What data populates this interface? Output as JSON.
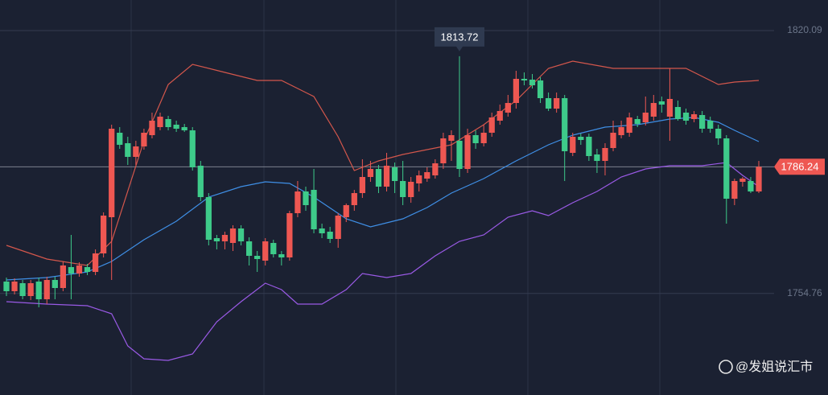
{
  "chart_data": {
    "type": "candlestick",
    "ylim": [
      1729.5,
      1827.7
    ],
    "yticks": [
      1820.09,
      1754.76
    ],
    "grid": true,
    "up_color": "#ee5752",
    "down_color": "#3ecb8a",
    "open": [
      1757.7,
      1755.3,
      1757.3,
      1754.1,
      1757.7,
      1753.3,
      1758.1,
      1756.1,
      1761.3,
      1759.7,
      1761.3,
      1760.1,
      1764.7,
      1773.7,
      1794.7,
      1792.1,
      1788.7,
      1791.3,
      1794.1,
      1796.1,
      1798.1,
      1796.7,
      1796.1,
      1795.3,
      1786.5,
      1778.7,
      1768.5,
      1767.7,
      1767.3,
      1770.9,
      1767.7,
      1764.1,
      1762.9,
      1767.3,
      1764.5,
      1763.7,
      1774.7,
      1780.1,
      1780.5,
      1770.9,
      1770.1,
      1768.3,
      1773.7,
      1776.7,
      1779.7,
      1783.7,
      1785.7,
      1781.3,
      1786.1,
      1782.7,
      1778.7,
      1782.1,
      1783.3,
      1784.1,
      1787.1,
      1792.7,
      1792.7,
      1785.7,
      1794.1,
      1792.1,
      1794.7,
      1797.7,
      1799.7,
      1802.1,
      1808.1,
      1807.9,
      1807.7,
      1803.3,
      1800.7,
      1803.3,
      1789.7,
      1793.7,
      1793.7,
      1789.3,
      1787.7,
      1790.9,
      1794.1,
      1794.7,
      1798.1,
      1797.3,
      1798.7,
      1802.5,
      1798.7,
      1801.1,
      1799.7,
      1798.1,
      1799.1,
      1797.7,
      1795.7,
      1793.3,
      1778.3,
      1782.5,
      1782.7,
      1780.1
    ],
    "high": [
      1758.7,
      1758.5,
      1758.1,
      1758.1,
      1758.7,
      1758.9,
      1758.9,
      1762.7,
      1769.3,
      1762.5,
      1762.1,
      1765.7,
      1774.9,
      1796.7,
      1796.1,
      1793.7,
      1792.7,
      1795.7,
      1799.7,
      1799.7,
      1798.9,
      1797.7,
      1796.9,
      1796.1,
      1787.7,
      1779.7,
      1769.3,
      1770.1,
      1771.7,
      1771.7,
      1768.7,
      1765.3,
      1768.5,
      1768.1,
      1765.3,
      1775.3,
      1782.7,
      1781.3,
      1785.7,
      1772.1,
      1771.3,
      1774.7,
      1777.1,
      1780.5,
      1788.1,
      1787.7,
      1786.7,
      1789.7,
      1787.3,
      1787.7,
      1783.7,
      1785.3,
      1786.1,
      1788.1,
      1794.7,
      1795.3,
      1813.72,
      1795.7,
      1795.3,
      1796.7,
      1799.7,
      1801.7,
      1804.1,
      1810.1,
      1809.7,
      1809.3,
      1808.5,
      1804.7,
      1804.7,
      1804.1,
      1794.7,
      1794.5,
      1794.5,
      1790.7,
      1792.1,
      1797.7,
      1797.7,
      1799.7,
      1798.9,
      1803.7,
      1804.1,
      1803.7,
      1810.7,
      1802.7,
      1800.7,
      1800.1,
      1800.1,
      1798.7,
      1796.7,
      1794.1,
      1783.3,
      1783.7,
      1783.7,
      1787.7
    ],
    "low": [
      1754.1,
      1754.5,
      1753.3,
      1753.1,
      1751.3,
      1752.1,
      1753.3,
      1755.3,
      1753.3,
      1758.9,
      1759.3,
      1759.3,
      1763.7,
      1758.1,
      1790.7,
      1786.7,
      1786.7,
      1790.5,
      1793.3,
      1795.3,
      1795.3,
      1794.9,
      1794.9,
      1785.3,
      1777.7,
      1766.7,
      1765.7,
      1765.7,
      1765.3,
      1766.7,
      1761.7,
      1760.1,
      1761.7,
      1763.7,
      1761.7,
      1762.9,
      1773.7,
      1775.3,
      1769.7,
      1768.5,
      1767.3,
      1766.1,
      1772.5,
      1775.3,
      1778.5,
      1782.5,
      1779.7,
      1780.1,
      1779.7,
      1776.7,
      1777.3,
      1780.1,
      1782.5,
      1783.3,
      1785.7,
      1787.7,
      1783.7,
      1784.7,
      1790.7,
      1791.3,
      1793.7,
      1796.7,
      1798.7,
      1800.7,
      1806.5,
      1805.7,
      1802.1,
      1800.1,
      1799.7,
      1782.7,
      1788.9,
      1791.7,
      1787.7,
      1784.7,
      1784.1,
      1790.1,
      1793.3,
      1793.7,
      1796.1,
      1796.5,
      1797.7,
      1799.7,
      1792.7,
      1797.7,
      1796.7,
      1797.3,
      1794.7,
      1794.7,
      1791.7,
      1772.1,
      1776.7,
      1781.3,
      1779.7,
      1779.7
    ],
    "close": [
      1755.3,
      1757.7,
      1754.1,
      1757.3,
      1753.3,
      1758.1,
      1756.1,
      1761.7,
      1759.7,
      1761.7,
      1760.1,
      1764.7,
      1774.1,
      1795.7,
      1791.7,
      1788.7,
      1791.3,
      1794.7,
      1797.7,
      1798.7,
      1796.1,
      1795.7,
      1795.3,
      1786.1,
      1778.7,
      1768.1,
      1767.7,
      1769.3,
      1770.9,
      1767.7,
      1764.1,
      1763.3,
      1767.7,
      1764.5,
      1763.7,
      1774.7,
      1780.1,
      1776.7,
      1770.7,
      1769.7,
      1768.3,
      1774.1,
      1776.7,
      1779.7,
      1783.7,
      1785.7,
      1781.3,
      1786.5,
      1782.7,
      1778.7,
      1782.5,
      1784.1,
      1784.9,
      1787.1,
      1793.3,
      1794.1,
      1785.7,
      1794.1,
      1792.1,
      1794.7,
      1798.5,
      1800.1,
      1802.1,
      1808.1,
      1807.7,
      1806.5,
      1803.3,
      1800.7,
      1803.3,
      1790.1,
      1793.7,
      1792.9,
      1788.9,
      1787.7,
      1790.9,
      1794.7,
      1796.1,
      1798.5,
      1796.9,
      1799.7,
      1802.1,
      1801.7,
      1803.1,
      1798.1,
      1797.7,
      1799.3,
      1795.7,
      1795.7,
      1793.3,
      1778.3,
      1782.7,
      1783.3,
      1780.1,
      1786.24
    ],
    "bands": [
      {
        "color": "#d4574c",
        "x": [
          0,
          5,
          10,
          13,
          17,
          20,
          23,
          27,
          31,
          34,
          38,
          41,
          43,
          46,
          49,
          55,
          59,
          63,
          67,
          70,
          75,
          81,
          84,
          88,
          90,
          93
        ],
        "values": [
          1766.7,
          1763.3,
          1761.7,
          1767.7,
          1792.7,
          1806.7,
          1811.7,
          1809.7,
          1807.7,
          1807.7,
          1803.7,
          1793.7,
          1785.3,
          1787.7,
          1789.3,
          1791.7,
          1796.7,
          1802.7,
          1810.7,
          1812.5,
          1810.7,
          1810.7,
          1810.7,
          1806.7,
          1807.3,
          1807.7
        ]
      },
      {
        "color": "#3f8fe6",
        "x": [
          0,
          5,
          10,
          13,
          17,
          21,
          25,
          29,
          32,
          35,
          38,
          42,
          45,
          49,
          52,
          55,
          59,
          63,
          67,
          70,
          74,
          78,
          82,
          85,
          88,
          90,
          93
        ],
        "values": [
          1758.1,
          1758.7,
          1760.1,
          1762.7,
          1768.1,
          1772.7,
          1778.7,
          1781.3,
          1782.5,
          1782.1,
          1778.7,
          1773.3,
          1771.3,
          1773.3,
          1776.1,
          1779.7,
          1783.3,
          1787.7,
          1791.7,
          1794.1,
          1796.1,
          1796.7,
          1798.1,
          1798.5,
          1797.3,
          1795.3,
          1792.5
        ]
      },
      {
        "color": "#9a5ae6",
        "x": [
          0,
          5,
          10,
          13,
          15,
          17,
          20,
          23,
          26,
          29,
          32,
          34,
          36,
          39,
          42,
          44,
          47,
          50,
          53,
          56,
          59,
          62,
          65,
          67,
          70,
          73,
          76,
          79,
          82,
          86,
          89,
          91,
          93
        ],
        "values": [
          1752.7,
          1752.1,
          1751.7,
          1749.7,
          1741.7,
          1738.5,
          1738.1,
          1739.7,
          1747.7,
          1752.7,
          1757.3,
          1755.7,
          1752.1,
          1752.1,
          1755.7,
          1759.7,
          1758.7,
          1759.7,
          1764.1,
          1767.7,
          1769.3,
          1773.7,
          1775.3,
          1774.1,
          1777.3,
          1780.1,
          1783.7,
          1785.7,
          1786.5,
          1786.5,
          1787.3,
          1784.1,
          1781.3
        ]
      }
    ],
    "watermark": "@发姐说汇市"
  }
}
